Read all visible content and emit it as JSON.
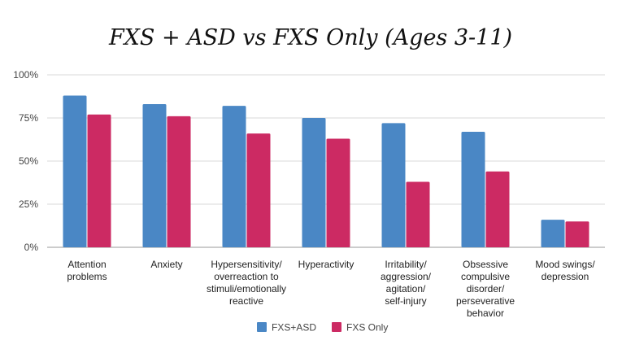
{
  "chart_data": {
    "type": "bar",
    "title": "FXS + ASD vs FXS Only (Ages 3-11)",
    "xlabel": "",
    "ylabel": "",
    "ylim": [
      0,
      100
    ],
    "yticks": [
      0,
      25,
      50,
      75,
      100
    ],
    "ytick_labels": [
      "0%",
      "25%",
      "50%",
      "75%",
      "100%"
    ],
    "grid": true,
    "legend_position": "bottom",
    "categories": [
      [
        "Attention",
        "problems"
      ],
      [
        "Anxiety"
      ],
      [
        "Hypersensitivity/",
        "overreaction to",
        "stimuli/emotionally",
        "reactive"
      ],
      [
        "Hyperactivity"
      ],
      [
        "Irritability/",
        "aggression/",
        "agitation/",
        "self-injury"
      ],
      [
        "Obsessive",
        "compulsive",
        "disorder/",
        "perseverative",
        "behavior"
      ],
      [
        "Mood swings/",
        "depression"
      ]
    ],
    "series": [
      {
        "name": "FXS+ASD",
        "color": "#4a87c5",
        "values": [
          88,
          83,
          82,
          75,
          72,
          67,
          16
        ]
      },
      {
        "name": "FXS Only",
        "color": "#cc2a63",
        "values": [
          77,
          76,
          66,
          63,
          38,
          44,
          15
        ]
      }
    ]
  }
}
